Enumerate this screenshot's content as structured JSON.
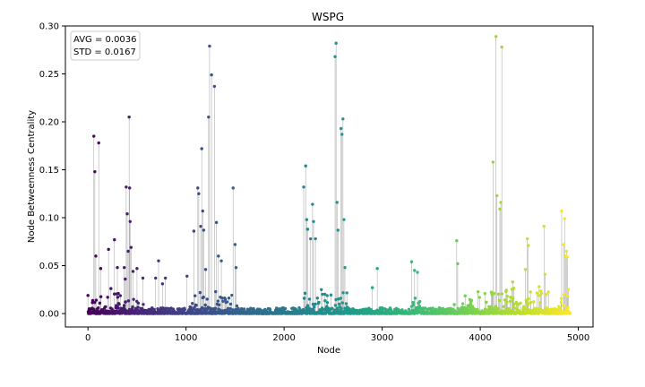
{
  "chart_data": {
    "type": "scatter",
    "title": "WSPG",
    "xlabel": "Node",
    "ylabel": "Node Betweenness Centrality",
    "xlim": [
      -230,
      5150
    ],
    "ylim": [
      -0.014,
      0.3
    ],
    "xticks": [
      0,
      1000,
      2000,
      3000,
      4000,
      5000
    ],
    "yticks": [
      0.0,
      0.05,
      0.1,
      0.15,
      0.2,
      0.25,
      0.3
    ],
    "xtick_labels": [
      "0",
      "1000",
      "2000",
      "3000",
      "4000",
      "5000"
    ],
    "ytick_labels": [
      "0.00",
      "0.05",
      "0.10",
      "0.15",
      "0.20",
      "0.25",
      "0.30"
    ],
    "stats": {
      "avg": "AVG = 0.0036",
      "std": "STD = 0.0167"
    },
    "legend_position": "top-left",
    "grid": false,
    "colormap": "viridis",
    "stem_color": "#b0b0b0",
    "n_nodes": 4920,
    "points": [
      [
        60,
        0.185
      ],
      [
        70,
        0.148
      ],
      [
        80,
        0.06
      ],
      [
        110,
        0.178
      ],
      [
        130,
        0.047
      ],
      [
        210,
        0.067
      ],
      [
        270,
        0.077
      ],
      [
        300,
        0.048
      ],
      [
        310,
        0.021
      ],
      [
        370,
        0.048
      ],
      [
        380,
        0.036
      ],
      [
        390,
        0.132
      ],
      [
        400,
        0.104
      ],
      [
        410,
        0.065
      ],
      [
        420,
        0.205
      ],
      [
        425,
        0.131
      ],
      [
        430,
        0.096
      ],
      [
        440,
        0.069
      ],
      [
        460,
        0.044
      ],
      [
        500,
        0.047
      ],
      [
        560,
        0.037
      ],
      [
        690,
        0.037
      ],
      [
        720,
        0.055
      ],
      [
        760,
        0.031
      ],
      [
        790,
        0.037
      ],
      [
        1010,
        0.039
      ],
      [
        1080,
        0.086
      ],
      [
        1120,
        0.131
      ],
      [
        1130,
        0.125
      ],
      [
        1150,
        0.091
      ],
      [
        1160,
        0.172
      ],
      [
        1170,
        0.107
      ],
      [
        1180,
        0.087
      ],
      [
        1200,
        0.046
      ],
      [
        1230,
        0.205
      ],
      [
        1240,
        0.279
      ],
      [
        1260,
        0.249
      ],
      [
        1290,
        0.237
      ],
      [
        1310,
        0.095
      ],
      [
        1330,
        0.06
      ],
      [
        1360,
        0.055
      ],
      [
        1480,
        0.131
      ],
      [
        1500,
        0.072
      ],
      [
        1510,
        0.048
      ],
      [
        2200,
        0.132
      ],
      [
        2220,
        0.154
      ],
      [
        2230,
        0.098
      ],
      [
        2240,
        0.088
      ],
      [
        2270,
        0.078
      ],
      [
        2290,
        0.114
      ],
      [
        2300,
        0.096
      ],
      [
        2320,
        0.078
      ],
      [
        2380,
        0.025
      ],
      [
        2520,
        0.268
      ],
      [
        2530,
        0.282
      ],
      [
        2540,
        0.116
      ],
      [
        2550,
        0.087
      ],
      [
        2580,
        0.193
      ],
      [
        2590,
        0.187
      ],
      [
        2600,
        0.203
      ],
      [
        2610,
        0.098
      ],
      [
        2620,
        0.048
      ],
      [
        2900,
        0.027
      ],
      [
        2950,
        0.047
      ],
      [
        3300,
        0.054
      ],
      [
        3330,
        0.045
      ],
      [
        3360,
        0.043
      ],
      [
        3760,
        0.076
      ],
      [
        3770,
        0.052
      ],
      [
        4130,
        0.158
      ],
      [
        4160,
        0.289
      ],
      [
        4170,
        0.123
      ],
      [
        4200,
        0.109
      ],
      [
        4210,
        0.116
      ],
      [
        4220,
        0.278
      ],
      [
        4330,
        0.033
      ],
      [
        4460,
        0.046
      ],
      [
        4480,
        0.078
      ],
      [
        4490,
        0.071
      ],
      [
        4600,
        0.028
      ],
      [
        4650,
        0.091
      ],
      [
        4660,
        0.041
      ],
      [
        4830,
        0.107
      ],
      [
        4850,
        0.072
      ],
      [
        4860,
        0.099
      ],
      [
        4870,
        0.06
      ],
      [
        4880,
        0.065
      ],
      [
        4890,
        0.059
      ]
    ],
    "tail_range": [
      0,
      0.012
    ],
    "tail_note": "remaining nodes cluster near zero"
  }
}
